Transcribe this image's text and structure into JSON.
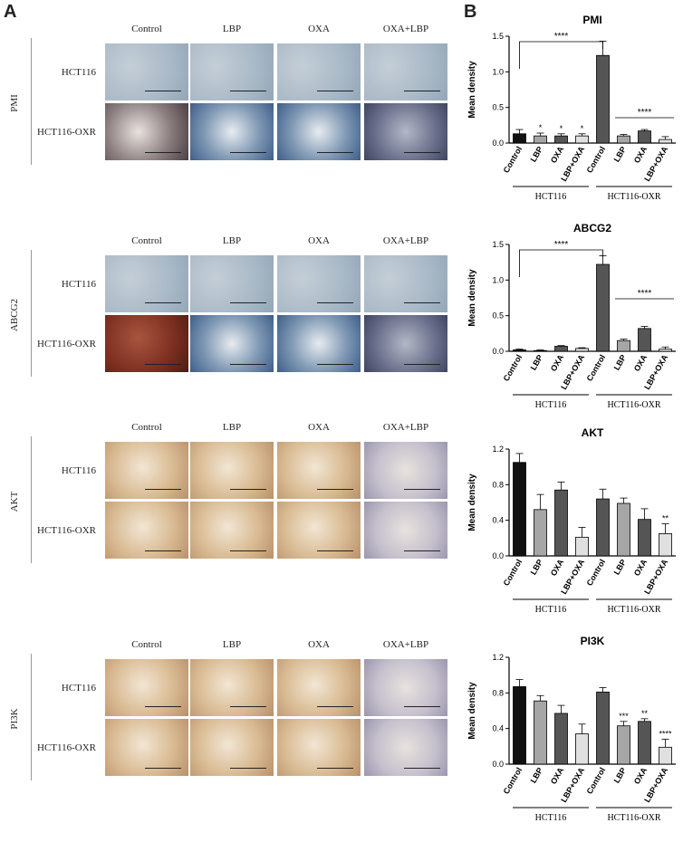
{
  "panel_labels": {
    "a": "A",
    "b": "B"
  },
  "ihc": {
    "columns": [
      "Control",
      "LBP",
      "OXA",
      "OXA+LBP"
    ],
    "rows": [
      "HCT116",
      "HCT116-OXR"
    ],
    "markers": [
      "PMI",
      "ABCG2",
      "AKT",
      "PI3K"
    ]
  },
  "colors": {
    "blue_stain": "#9fb3c8",
    "brown_stain": "#c9a77a",
    "dark_bar": "#111111",
    "mid_bar": "#555555",
    "light_bar": "#a6a6a6",
    "lighter_bar": "#e0e0e0"
  },
  "chart_data": [
    {
      "type": "bar",
      "title": "PMI",
      "ylabel": "Mean density",
      "categories": [
        "Control",
        "LBP",
        "OXA",
        "LBP+OXA",
        "Control",
        "LBP",
        "OXA",
        "LBP+OXA"
      ],
      "groups": [
        "HCT116",
        "HCT116-OXR"
      ],
      "values": [
        0.13,
        0.1,
        0.1,
        0.1,
        1.23,
        0.1,
        0.17,
        0.05
      ],
      "errors": [
        0.06,
        0.04,
        0.03,
        0.03,
        0.2,
        0.02,
        0.02,
        0.04
      ],
      "ylim": [
        0,
        1.5
      ],
      "yticks": [
        "0.0",
        "0.5",
        "1.0",
        "1.5"
      ],
      "annotations": [
        "*",
        "*",
        "*",
        "****",
        "****"
      ]
    },
    {
      "type": "bar",
      "title": "ABCG2",
      "ylabel": "Mean density",
      "categories": [
        "Control",
        "LBP",
        "OXA",
        "LBP+OXA",
        "Control",
        "LBP",
        "OXA",
        "LBP+OXA"
      ],
      "groups": [
        "HCT116",
        "HCT116-OXR"
      ],
      "values": [
        0.02,
        0.01,
        0.07,
        0.04,
        1.22,
        0.15,
        0.32,
        0.03
      ],
      "errors": [
        0.01,
        0.01,
        0.01,
        0.01,
        0.12,
        0.02,
        0.03,
        0.03
      ],
      "ylim": [
        0,
        1.5
      ],
      "yticks": [
        "0.0",
        "0.5",
        "1.0",
        "1.5"
      ],
      "annotations": [
        "****",
        "****"
      ]
    },
    {
      "type": "bar",
      "title": "AKT",
      "ylabel": "Mean density",
      "categories": [
        "Control",
        "LBP",
        "OXA",
        "LBP+OXA",
        "Control",
        "LBP",
        "OXA",
        "LBP+OXA"
      ],
      "groups": [
        "HCT116",
        "HCT116-OXR"
      ],
      "values": [
        1.05,
        0.52,
        0.74,
        0.21,
        0.64,
        0.59,
        0.41,
        0.25
      ],
      "errors": [
        0.1,
        0.17,
        0.09,
        0.11,
        0.11,
        0.06,
        0.12,
        0.11
      ],
      "ylim": [
        0,
        1.2
      ],
      "yticks": [
        "0.0",
        "0.4",
        "0.8",
        "1.2"
      ],
      "annotations": [
        "**"
      ]
    },
    {
      "type": "bar",
      "title": "PI3K",
      "ylabel": "Mean density",
      "categories": [
        "Control",
        "LBP",
        "OXA",
        "LBP+OXA",
        "Control",
        "LBP",
        "OXA",
        "LBP+OXA"
      ],
      "groups": [
        "HCT116",
        "HCT116-OXR"
      ],
      "values": [
        0.87,
        0.71,
        0.57,
        0.34,
        0.81,
        0.43,
        0.48,
        0.19
      ],
      "errors": [
        0.08,
        0.06,
        0.09,
        0.11,
        0.05,
        0.05,
        0.03,
        0.09
      ],
      "ylim": [
        0,
        1.2
      ],
      "yticks": [
        "0.0",
        "0.4",
        "0.8",
        "1.2"
      ],
      "annotations": [
        "***",
        "**",
        "****"
      ]
    }
  ]
}
